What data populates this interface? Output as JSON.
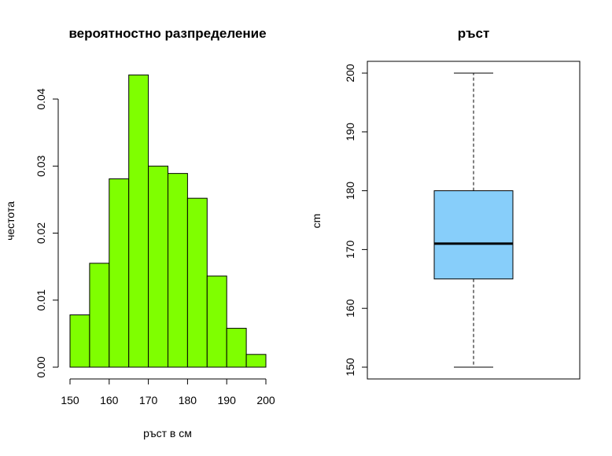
{
  "chart_data": [
    {
      "type": "bar",
      "subtype": "histogram",
      "title": "вероятностно разпределение",
      "xlabel": "ръст в см",
      "ylabel": "честота",
      "bin_edges": [
        150,
        155,
        160,
        165,
        170,
        175,
        180,
        185,
        190,
        195,
        200
      ],
      "values": [
        0.0078,
        0.0155,
        0.0281,
        0.0436,
        0.03,
        0.0289,
        0.0252,
        0.0136,
        0.0058,
        0.0019
      ],
      "xlim": [
        150,
        200
      ],
      "ylim": [
        0,
        0.04
      ],
      "x_ticks": [
        "150",
        "160",
        "170",
        "180",
        "190",
        "200"
      ],
      "y_ticks": [
        "0.00",
        "0.01",
        "0.02",
        "0.03",
        "0.04"
      ],
      "bar_color": "#7FFF00",
      "grid": false
    },
    {
      "type": "box",
      "title": "ръст",
      "ylabel": "cm",
      "whisker_low": 150,
      "q1": 165,
      "median": 171,
      "q3": 180,
      "whisker_high": 200,
      "ylim": [
        150,
        200
      ],
      "y_ticks": [
        "150",
        "160",
        "170",
        "180",
        "190",
        "200"
      ],
      "box_color": "#87CEFA",
      "grid": false
    }
  ]
}
